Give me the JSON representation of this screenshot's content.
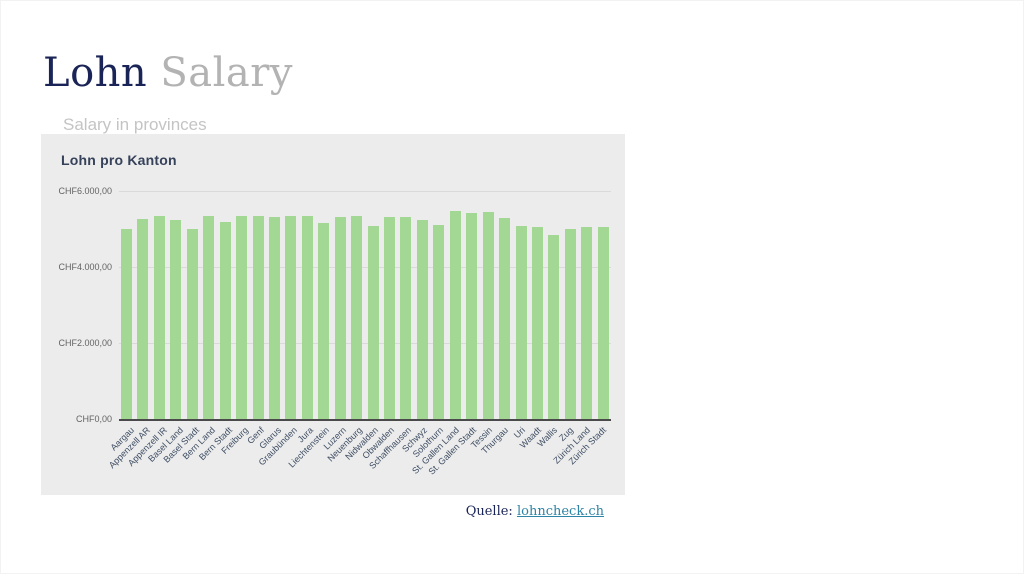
{
  "slide": {
    "title_primary": "Lohn",
    "title_secondary": "Salary",
    "subtitle": "Salary in provinces"
  },
  "source": {
    "label": "Quelle:",
    "link_text": "lohncheck.ch"
  },
  "colors": {
    "title_primary": "#1a2456",
    "title_secondary": "#b3b3b3",
    "subtitle": "#c4c4c4",
    "panel_background": "#ebeceb",
    "bar": "#a3d794",
    "gridline": "#d9dad9",
    "axis_baseline": "#4a4a4a",
    "link": "#2e84a4"
  },
  "chart_data": {
    "type": "bar",
    "title": "Lohn pro Kanton",
    "xlabel": "",
    "ylabel": "",
    "currency": "CHF",
    "ylim": [
      0,
      6000
    ],
    "grid": true,
    "legend": "none",
    "ytick_values": [
      0,
      2000,
      4000,
      6000
    ],
    "ytick_labels": [
      "CHF0,00",
      "CHF2.000,00",
      "CHF4.000,00",
      "CHF6.000,00"
    ],
    "categories": [
      "Aargau",
      "Appenzell AR",
      "Appenzell IR",
      "Basel Land",
      "Basel Stadt",
      "Bern Land",
      "Bern Stadt",
      "Freiburg",
      "Genf",
      "Glarus",
      "Graubünden",
      "Jura",
      "Liechtenstein",
      "Luzern",
      "Neuenburg",
      "Nidwalden",
      "Obwalden",
      "Schaffhausen",
      "Schwyz",
      "Solothurn",
      "St. Gallen Land",
      "St. Gallen Stadt",
      "Tessin",
      "Thurgau",
      "Uri",
      "Waadt",
      "Wallis",
      "Zug",
      "Zürich Land",
      "Zürich Stadt"
    ],
    "values": [
      5000,
      5270,
      5330,
      5240,
      5000,
      5330,
      5190,
      5340,
      5340,
      5320,
      5340,
      5330,
      5150,
      5320,
      5340,
      5080,
      5320,
      5320,
      5240,
      5110,
      5480,
      5420,
      5450,
      5300,
      5080,
      5040,
      4840,
      5010,
      5060,
      5060
    ]
  }
}
